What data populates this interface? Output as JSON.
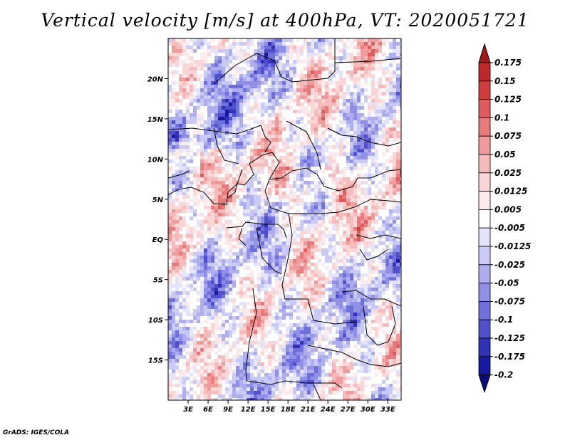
{
  "title": "Vertical velocity [m/s] at 400hPa, VT: 2020051721",
  "credit": "GrADS: IGES/COLA",
  "chart_data": {
    "type": "heatmap",
    "variable": "Vertical velocity",
    "units": "m/s",
    "level": "400hPa",
    "valid_time": "2020051721",
    "lon_range": [
      0,
      35
    ],
    "lat_range": [
      -20,
      25
    ],
    "lon_ticks": [
      "3E",
      "6E",
      "9E",
      "12E",
      "15E",
      "18E",
      "21E",
      "24E",
      "27E",
      "30E",
      "33E"
    ],
    "lon_tick_values": [
      3,
      6,
      9,
      12,
      15,
      18,
      21,
      24,
      27,
      30,
      33
    ],
    "lat_ticks": [
      "20N",
      "15N",
      "10N",
      "5N",
      "EQ",
      "5S",
      "10S",
      "15S"
    ],
    "lat_tick_values": [
      20,
      15,
      10,
      5,
      0,
      -5,
      -10,
      -15
    ],
    "colorbar": {
      "labels": [
        "0.175",
        "0.15",
        "0.125",
        "0.1",
        "0.075",
        "0.05",
        "0.025",
        "0.0125",
        "0.005",
        "-0.005",
        "-0.0125",
        "-0.025",
        "-0.05",
        "-0.075",
        "-0.1",
        "-0.125",
        "-0.175",
        "-0.2"
      ],
      "colors": [
        "#a01818",
        "#be2828",
        "#d03c3c",
        "#de5c5c",
        "#e87c7c",
        "#f09c9c",
        "#f6bcbc",
        "#fad6d6",
        "#fdeaea",
        "#ffffff",
        "#e4e4fa",
        "#cacaf6",
        "#aeaeee",
        "#9090e6",
        "#7070dc",
        "#5050cc",
        "#3030b8",
        "#1818a0",
        "#0a0a80"
      ]
    }
  }
}
